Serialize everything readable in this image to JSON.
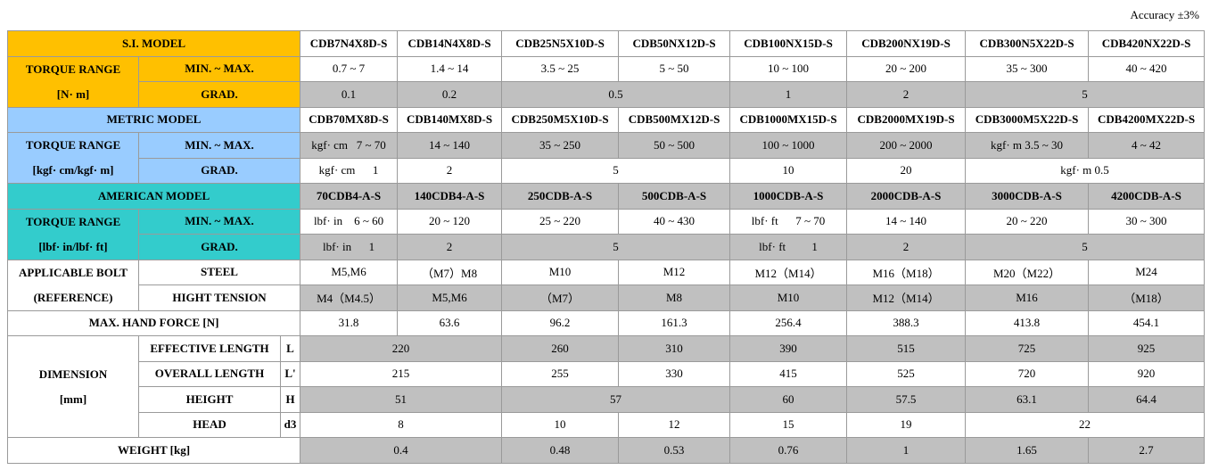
{
  "accuracy": "Accuracy ±3%",
  "table": {
    "rows": [
      [
        "S.I. MODEL",
        "CDB7N4X8D-S",
        "CDB14N4X8D-S",
        "CDB25N5X10D-S",
        "CDB50NX12D-S",
        "CDB100NX15D-S",
        "CDB200NX19D-S",
        "CDB300N5X22D-S",
        "CDB420NX22D-S"
      ],
      [
        "TORQUE RANGE",
        "MIN. ~ MAX.",
        "0.7 ~ 7",
        "1.4 ~ 14",
        "3.5 ~ 25",
        "5 ~ 50",
        "10 ~ 100",
        "20 ~ 200",
        "35 ~ 300",
        "40 ~ 420"
      ],
      [
        "[N· m]",
        "GRAD.",
        "0.1",
        "0.2",
        "0.5",
        "1",
        "2",
        "5"
      ],
      [
        "METRIC MODEL",
        "CDB70MX8D-S",
        "CDB140MX8D-S",
        "CDB250M5X10D-S",
        "CDB500MX12D-S",
        "CDB1000MX15D-S",
        "CDB2000MX19D-S",
        "CDB3000M5X22D-S",
        "CDB4200MX22D-S"
      ],
      [
        "TORQUE RANGE",
        "MIN. ~ MAX.",
        "kgf· cm   7 ~ 70",
        "14 ~ 140",
        "35 ~ 250",
        "50 ~ 500",
        "100 ~ 1000",
        "200 ~ 2000",
        "kgf· m 3.5 ~ 30",
        "4 ~ 42"
      ],
      [
        "[kgf· cm/kgf· m]",
        "GRAD.",
        "kgf· cm      1",
        "2",
        "5",
        "10",
        "20",
        "kgf· m 0.5"
      ],
      [
        "AMERICAN MODEL",
        "70CDB4-A-S",
        "140CDB4-A-S",
        "250CDB-A-S",
        "500CDB-A-S",
        "1000CDB-A-S",
        "2000CDB-A-S",
        "3000CDB-A-S",
        "4200CDB-A-S"
      ],
      [
        "TORQUE RANGE",
        "MIN. ~ MAX.",
        "lbf· in    6 ~ 60",
        "20 ~ 120",
        "25 ~ 220",
        "40 ~ 430",
        "lbf· ft      7 ~ 70",
        "14 ~ 140",
        "20 ~ 220",
        "30 ~ 300"
      ],
      [
        "[lbf· in/lbf· ft]",
        "GRAD.",
        "lbf· in      1",
        "2",
        "5",
        "lbf· ft         1",
        "2",
        "5"
      ],
      [
        "APPLICABLE BOLT",
        "STEEL",
        "M5,M6",
        "（M7）M8",
        "M10",
        "M12",
        "M12（M14）",
        "M16（M18）",
        "M20（M22）",
        "M24"
      ],
      [
        "(REFERENCE)",
        "HIGHT TENSION",
        "M4（M4.5）",
        "M5,M6",
        "（M7）",
        "M8",
        "M10",
        "M12（M14）",
        "M16",
        "（M18）"
      ],
      [
        "MAX. HAND FORCE [N]",
        "31.8",
        "63.6",
        "96.2",
        "161.3",
        "256.4",
        "388.3",
        "413.8",
        "454.1"
      ],
      [
        "DIMENSION",
        "EFFECTIVE LENGTH",
        "L",
        "220",
        "260",
        "310",
        "390",
        "515",
        "725",
        "925"
      ],
      [
        "[mm]",
        "OVERALL LENGTH",
        "L'",
        "215",
        "255",
        "330",
        "415",
        "525",
        "720",
        "920"
      ],
      [
        "HEIGHT",
        "H",
        "51",
        "57",
        "60",
        "57.5",
        "63.1",
        "64.4"
      ],
      [
        "HEAD",
        "d3",
        "8",
        "10",
        "12",
        "15",
        "19",
        "22"
      ],
      [
        "WEIGHT [kg]",
        "0.4",
        "0.48",
        "0.53",
        "0.76",
        "1",
        "1.65",
        "2.7"
      ]
    ]
  }
}
